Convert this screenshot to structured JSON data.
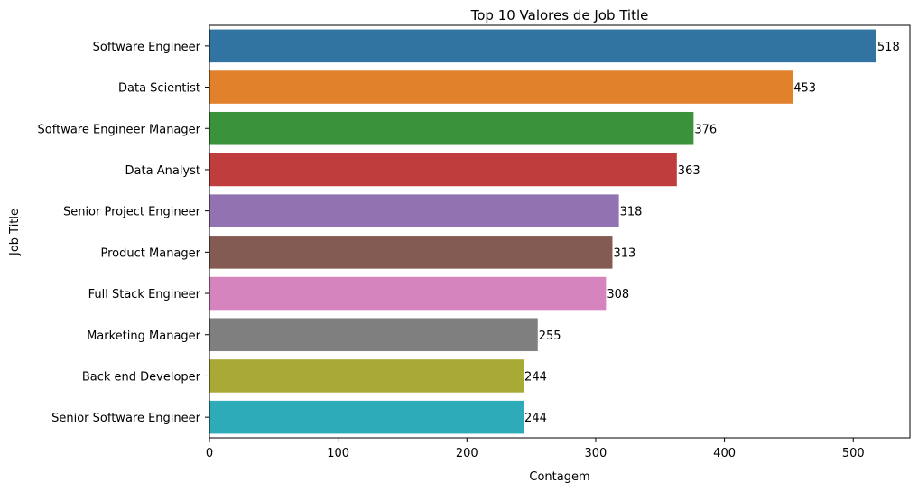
{
  "chart_data": {
    "type": "bar",
    "orientation": "horizontal",
    "title": "Top 10 Valores de Job Title",
    "xlabel": "Contagem",
    "ylabel": "Job Title",
    "xlim": [
      0,
      544
    ],
    "xticks": [
      0,
      100,
      200,
      300,
      400,
      500
    ],
    "grid": false,
    "categories": [
      "Software Engineer",
      "Data Scientist",
      "Software Engineer Manager",
      "Data Analyst",
      "Senior Project Engineer",
      "Product Manager",
      "Full Stack Engineer",
      "Marketing Manager",
      "Back end Developer",
      "Senior Software Engineer"
    ],
    "values": [
      518,
      453,
      376,
      363,
      318,
      313,
      308,
      255,
      244,
      244
    ],
    "colors": [
      "#3274a1",
      "#e1812c",
      "#3a923a",
      "#c03d3e",
      "#9372b2",
      "#845b53",
      "#d684bd",
      "#7f7f7f",
      "#a9aa35",
      "#2eabb8"
    ]
  }
}
